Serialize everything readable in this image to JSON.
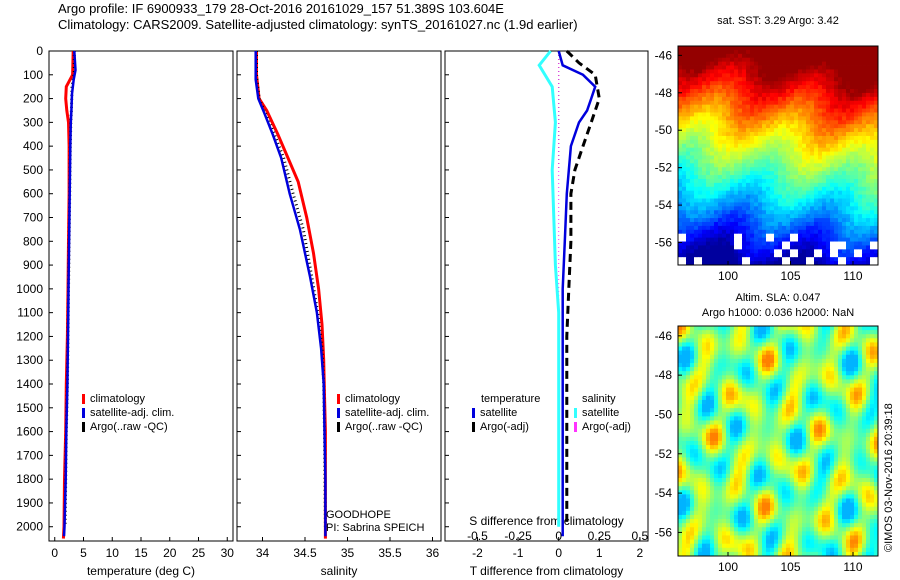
{
  "header": {
    "line1": "Argo profile: IF 6900933_179 28-Oct-2016 20161029_157 51.389S 103.604E",
    "line2": "Climatology: CARS2009. Satellite-adjusted climatology: synTS_20161027.nc (1.9d earlier)"
  },
  "side_stamp": "©IMOS 03-Nov-2016 20:39:18",
  "colors": {
    "climatology": "#ff0000",
    "satellite": "#0000dd",
    "argo": "#000000",
    "sal_satellite": "#33ffff",
    "sal_argo": "#ff33ff"
  },
  "chart_data": [
    {
      "type": "line",
      "xlabel": "temperature (deg C)",
      "ylabel": "",
      "xlim": [
        -1,
        31
      ],
      "ylim": [
        2060,
        0
      ],
      "y_reversed": true,
      "xticks": [
        0,
        5,
        10,
        15,
        20,
        25,
        30
      ],
      "xtick_labels": [
        "0",
        "5",
        "10",
        "15",
        "20",
        "25",
        "30"
      ],
      "yticks": [
        0,
        100,
        200,
        300,
        400,
        500,
        600,
        700,
        800,
        900,
        1000,
        1100,
        1200,
        1300,
        1400,
        1500,
        1600,
        1700,
        1800,
        1900,
        2000
      ],
      "ytick_labels": [
        "0",
        "100",
        "200",
        "300",
        "400",
        "500",
        "600",
        "700",
        "800",
        "900",
        "1000",
        "1100",
        "1200",
        "1300",
        "1400",
        "1500",
        "1600",
        "1700",
        "1800",
        "1900",
        "2000"
      ],
      "legend": [
        "climatology",
        "satellite-adj. clim.",
        "Argo(..raw -QC)"
      ],
      "series": [
        {
          "name": "climatology",
          "x": [
            3.2,
            3.1,
            2.0,
            1.9,
            2.1,
            2.4,
            2.5,
            2.5,
            2.4,
            2.3,
            2.2,
            2.0,
            1.9,
            1.7,
            1.6,
            1.5
          ],
          "y": [
            0,
            100,
            150,
            200,
            250,
            300,
            400,
            600,
            800,
            1000,
            1200,
            1400,
            1600,
            1800,
            2000,
            2050
          ]
        },
        {
          "name": "satellite-adj. clim.",
          "x": [
            3.4,
            3.6,
            3.3,
            3.0,
            2.9,
            2.8,
            2.7,
            2.6,
            2.5,
            2.4,
            2.3,
            2.2,
            2.0,
            1.9,
            1.7,
            1.6
          ],
          "y": [
            0,
            80,
            120,
            180,
            250,
            300,
            400,
            600,
            800,
            1000,
            1200,
            1400,
            1600,
            1800,
            2000,
            2040
          ]
        },
        {
          "name": "Argo(..raw -QC)",
          "x": [
            3.4,
            3.4,
            3.0,
            2.9,
            2.8,
            2.7,
            2.6,
            2.5,
            2.4,
            2.3,
            2.2,
            2.0,
            1.9,
            1.8
          ],
          "y": [
            0,
            90,
            150,
            250,
            300,
            400,
            600,
            800,
            1000,
            1200,
            1400,
            1600,
            1800,
            2000
          ]
        }
      ]
    },
    {
      "type": "line",
      "xlabel": "salinity",
      "xlim": [
        33.7,
        36.1
      ],
      "ylim": [
        2060,
        0
      ],
      "y_reversed": true,
      "xticks": [
        34,
        34.5,
        35,
        35.5,
        36
      ],
      "xtick_labels": [
        "34",
        "34.5",
        "35",
        "35.5",
        "36"
      ],
      "legend": [
        "climatology",
        "satellite-adj. clim.",
        "Argo(..raw -QC)"
      ],
      "annotations": [
        "GOODHOPE",
        "PI: Sabrina SPEICH"
      ],
      "series": [
        {
          "name": "climatology",
          "x": [
            33.93,
            33.93,
            33.96,
            34.05,
            34.18,
            34.3,
            34.42,
            34.52,
            34.6,
            34.66,
            34.7,
            34.72,
            34.73,
            34.74,
            34.74,
            34.74
          ],
          "y": [
            0,
            100,
            200,
            250,
            350,
            450,
            550,
            700,
            850,
            1000,
            1150,
            1300,
            1450,
            1600,
            1800,
            2050
          ]
        },
        {
          "name": "satellite-adj. clim.",
          "x": [
            33.92,
            33.92,
            33.95,
            34.02,
            34.12,
            34.22,
            34.32,
            34.44,
            34.56,
            34.64,
            34.69,
            34.72,
            34.73,
            34.74,
            34.74
          ],
          "y": [
            0,
            120,
            200,
            260,
            350,
            450,
            600,
            750,
            950,
            1100,
            1250,
            1400,
            1600,
            1800,
            2040
          ]
        },
        {
          "name": "Argo(..raw -QC)",
          "x": [
            33.93,
            33.93,
            33.96,
            34.03,
            34.14,
            34.25,
            34.36,
            34.48,
            34.58,
            34.65,
            34.7,
            34.72,
            34.73,
            34.74
          ],
          "y": [
            0,
            100,
            200,
            260,
            350,
            450,
            600,
            750,
            950,
            1100,
            1250,
            1400,
            1600,
            2000
          ]
        }
      ]
    },
    {
      "type": "line",
      "xlabel": "T difference from climatology",
      "xlabel2": "S difference from climatology",
      "xlim": [
        -2.8,
        2.2
      ],
      "ylim": [
        2060,
        0
      ],
      "y_reversed": true,
      "xticks": [
        -2,
        -1,
        0,
        1,
        2
      ],
      "xtick_labels": [
        "-2",
        "-1",
        "0",
        "1",
        "2"
      ],
      "xticks2": [
        -0.5,
        -0.25,
        0,
        0.25,
        0.5
      ],
      "xtick2_labels": [
        "-0.5",
        "-0.25",
        "0",
        "0.25",
        "0.5"
      ],
      "legend_titles": [
        "temperature",
        "salinity"
      ],
      "legend": [
        "satellite",
        "Argo(-adj)",
        "satellite",
        "Argo(-adj)"
      ],
      "series": [
        {
          "name": "temperature satellite",
          "x": [
            0.0,
            0.1,
            0.6,
            0.9,
            0.8,
            0.7,
            0.5,
            0.3,
            0.2,
            0.15,
            0.1,
            0.1,
            0.1,
            0.1,
            0.1,
            0.1
          ],
          "y": [
            0,
            60,
            100,
            150,
            200,
            250,
            300,
            400,
            600,
            800,
            1000,
            1200,
            1400,
            1600,
            1800,
            2040
          ]
        },
        {
          "name": "temperature Argo(-adj)",
          "x": [
            0.2,
            0.5,
            0.9,
            1.0,
            0.8,
            0.6,
            0.4,
            0.3,
            0.3,
            0.25,
            0.2,
            0.2,
            0.2,
            0.2,
            0.2
          ],
          "y": [
            0,
            50,
            100,
            200,
            300,
            400,
            500,
            600,
            800,
            1000,
            1200,
            1400,
            1600,
            1800,
            2000
          ]
        },
        {
          "name": "salinity satellite",
          "x": [
            -0.05,
            -0.12,
            -0.04,
            -0.02,
            -0.04,
            -0.03,
            -0.02,
            0.0,
            0.0,
            0.0,
            0.0
          ],
          "y": [
            0,
            60,
            150,
            300,
            500,
            700,
            900,
            1100,
            1400,
            1700,
            2000
          ]
        },
        {
          "name": "salinity Argo(-adj)",
          "x": [
            0.0,
            0.0
          ],
          "y": [
            0,
            2000
          ]
        }
      ]
    },
    {
      "type": "heatmap",
      "title": "sat. SST: 3.29 Argo: 3.42",
      "xlim": [
        96,
        112
      ],
      "ylim": [
        -57.2,
        -45.5
      ],
      "xticks": [
        100,
        105,
        110
      ],
      "xtick_labels": [
        "100",
        "105",
        "110"
      ],
      "yticks": [
        -46,
        -48,
        -50,
        -52,
        -54,
        -56
      ],
      "ytick_labels": [
        "-46",
        "-48",
        "-50",
        "-52",
        "-54",
        "-56"
      ],
      "colormap": "jet",
      "argo_position": [
        103.604,
        -51.389
      ]
    },
    {
      "type": "heatmap",
      "title": "Altim. SLA: 0.047",
      "title2": "Argo h1000: 0.036 h2000: NaN",
      "xlim": [
        96,
        112
      ],
      "ylim": [
        -57.2,
        -45.5
      ],
      "xticks": [
        100,
        105,
        110
      ],
      "xtick_labels": [
        "100",
        "105",
        "110"
      ],
      "yticks": [
        -46,
        -48,
        -50,
        -52,
        -54,
        -56
      ],
      "ytick_labels": [
        "-46",
        "-48",
        "-50",
        "-52",
        "-54",
        "-56"
      ],
      "colormap": "jet"
    }
  ]
}
